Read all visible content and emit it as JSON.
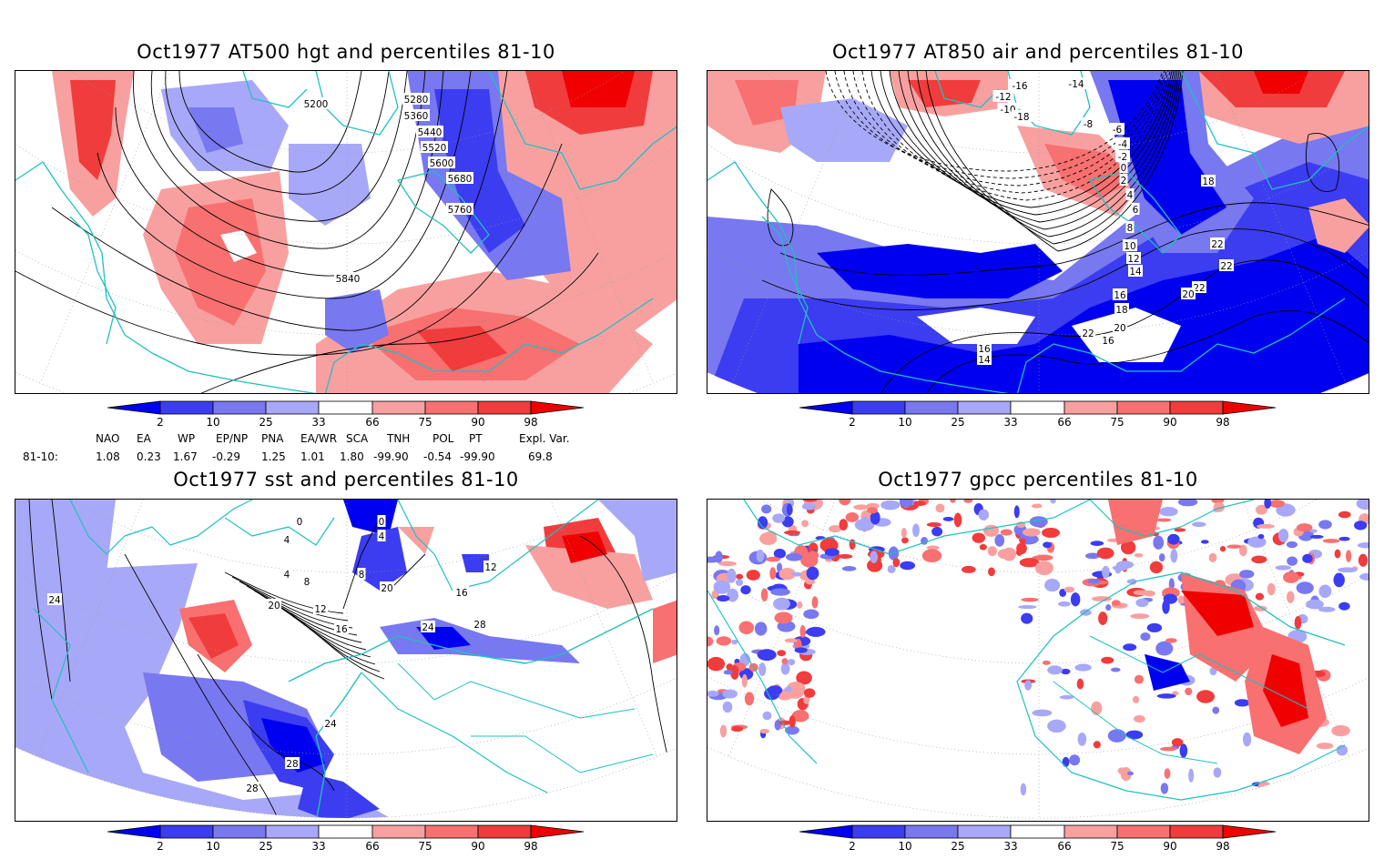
{
  "panels": {
    "hgt": {
      "title": "Oct1977 AT500 hgt and percentiles 81-10",
      "contour_labels": [
        "5200",
        "5280",
        "5360",
        "5440",
        "5520",
        "5600",
        "5680",
        "5760",
        "5840"
      ]
    },
    "air": {
      "title": "Oct1977 AT850 air and percentiles 81-10",
      "contour_labels": [
        "-16",
        "-12",
        "-10",
        "-18",
        "-14",
        "-8",
        "-6",
        "-4",
        "-2",
        "0",
        "2",
        "4",
        "6",
        "8",
        "10",
        "12",
        "14",
        "16",
        "18",
        "20",
        "22",
        "16",
        "18",
        "22",
        "22",
        "22",
        "20",
        "18",
        "16",
        "16",
        "14",
        "16"
      ]
    },
    "sst": {
      "title": "Oct1977 sst and percentiles 81-10",
      "contour_labels": [
        "0",
        "4",
        "8",
        "12",
        "16",
        "20",
        "24",
        "28",
        "28",
        "24",
        "20",
        "20",
        "24",
        "28",
        "12",
        "16",
        "0",
        "4",
        "8",
        "4"
      ]
    },
    "gpcc": {
      "title": "Oct1977 gpcc percentiles 81-10"
    }
  },
  "colorbar": {
    "labels": [
      "2",
      "10",
      "25",
      "33",
      "66",
      "75",
      "90",
      "98"
    ],
    "colors": {
      "blue_1": "#0000f0",
      "blue_2": "#3c3cf0",
      "blue_3": "#7878f0",
      "blue_4": "#a8a8f8",
      "white": "#ffffff",
      "red_1": "#f8a0a0",
      "red_2": "#f87070",
      "red_3": "#f03c3c",
      "red_4": "#f00000"
    }
  },
  "indices": {
    "headers": [
      "NAO",
      "EA",
      "WP",
      "EP/NP",
      "PNA",
      "EA/WR",
      "SCA",
      "TNH",
      "POL",
      "PT",
      "Expl. Var."
    ],
    "row_label": "81-10:",
    "values": [
      "1.08",
      "0.23",
      "1.67",
      "-0.29",
      "1.25",
      "1.01",
      "1.80",
      "-99.90",
      "-0.54",
      "-99.90",
      "69.8"
    ]
  },
  "map_colors": {
    "coast": "#20c0c0",
    "grid": "#999999",
    "contour": "#000000"
  }
}
